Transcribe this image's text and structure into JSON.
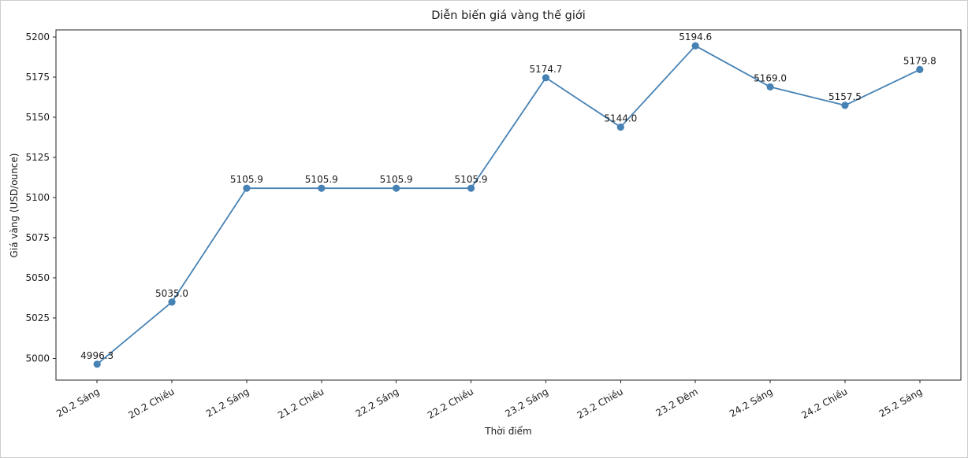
{
  "figure": {
    "background": "#ffffff",
    "border_color": "#cccccc"
  },
  "chart_data": {
    "type": "line",
    "title": "Diễn biến giá vàng thế giới",
    "xlabel": "Thời điểm",
    "ylabel": "Giá vàng (USD/ounce)",
    "categories": [
      "20.2 Sáng",
      "20.2 Chiều",
      "21.2 Sáng",
      "21.2 Chiều",
      "22.2 Sáng",
      "22.2 Chiều",
      "23.2 Sáng",
      "23.2 Chiều",
      "23.2 Đêm",
      "24.2 Sáng",
      "24.2 Chiều",
      "25.2 Sáng"
    ],
    "values": [
      4996.3,
      5035.0,
      5105.9,
      5105.9,
      5105.9,
      5105.9,
      5174.7,
      5144.0,
      5194.6,
      5169.0,
      5157.5,
      5179.8
    ],
    "point_labels": [
      "4996.3",
      "5035.0",
      "5105.9",
      "5105.9",
      "5105.9",
      "5105.9",
      "5174.7",
      "5144.0",
      "5194.6",
      "5169.0",
      "5157.5",
      "5179.8"
    ],
    "yticks": [
      5000,
      5025,
      5050,
      5075,
      5100,
      5125,
      5150,
      5175,
      5200
    ],
    "ylim": [
      4986.4,
      5204.5
    ],
    "xtick_rotation_deg": 30,
    "grid": false,
    "legend": null,
    "line_color": "#4682b4",
    "marker_color": "#4682b4",
    "marker": "circle",
    "text_color": "#1a1a1a",
    "spine_color": "#262626"
  }
}
